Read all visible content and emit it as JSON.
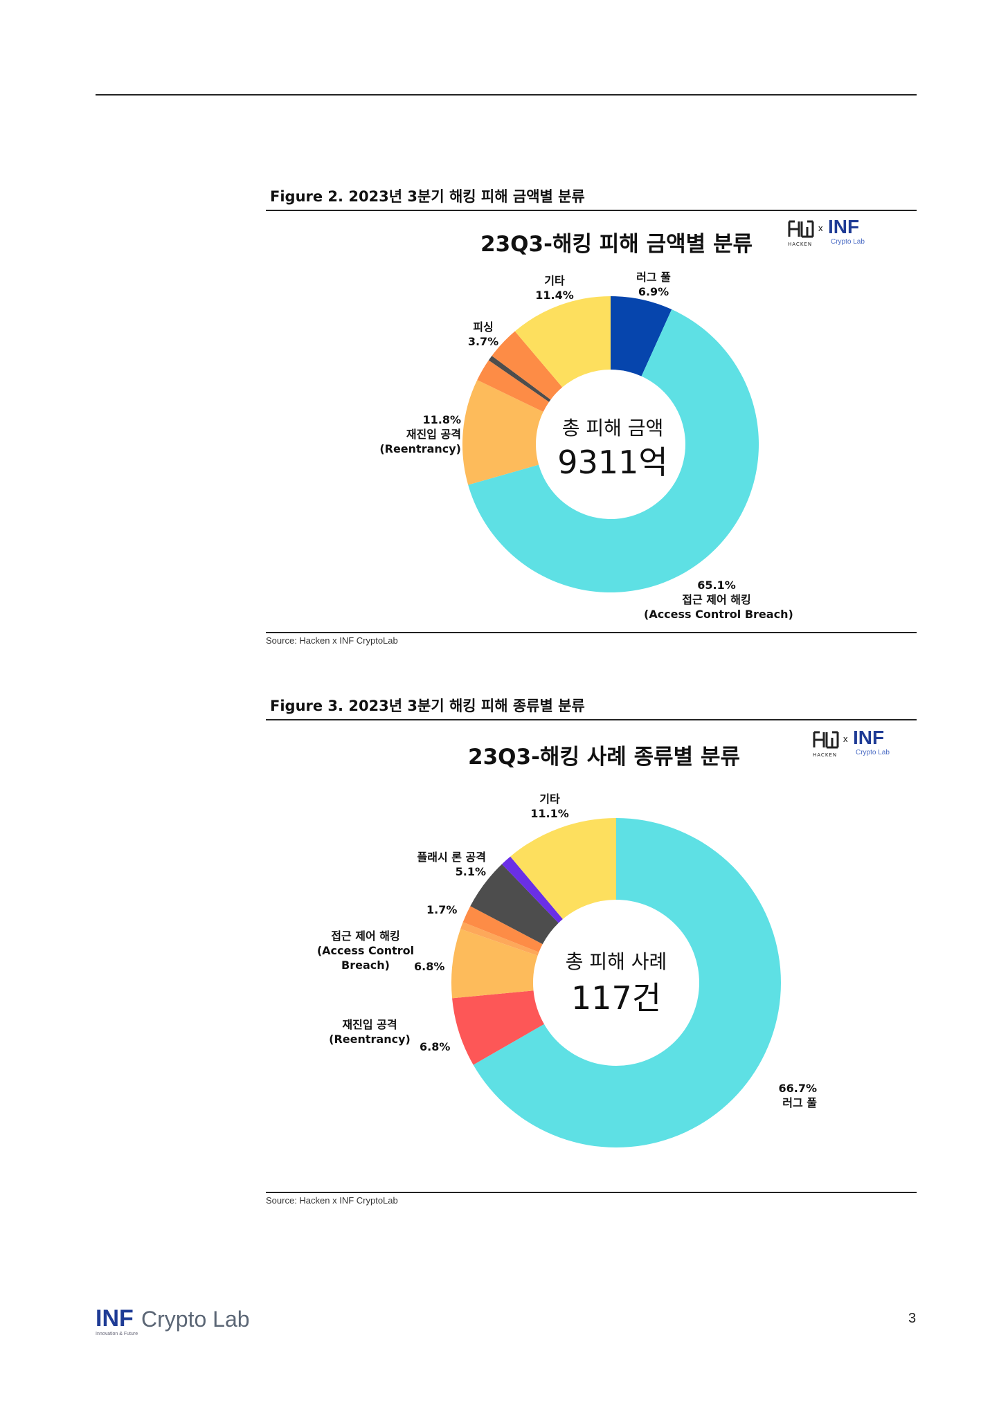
{
  "figure2": {
    "caption": "Figure 2. 2023년 3분기 해킹 피해 금액별 분류",
    "chart_title": "23Q3-해킹 피해 금액별 분류",
    "center_label": "총 피해 금액",
    "center_value": "9311억",
    "source": "Source: Hacken x INF CryptoLab",
    "chart_data": {
      "type": "pie",
      "title": "23Q3-해킹 피해 금액별 분류",
      "slices": [
        {
          "label": "러그 풀",
          "value": 6.9,
          "color": "#0645ad"
        },
        {
          "label": "접근 제어 해킹 (Access Control Breach)",
          "value": 65.1,
          "color": "#5ee0e4"
        },
        {
          "label": "재진입 공격 (Reentrancy)",
          "value": 11.8,
          "color": "#fdbb5b"
        },
        {
          "label": "",
          "value": 2.5,
          "color": "#fd8c46"
        },
        {
          "label": "",
          "value": 0.6,
          "color": "#4d4d4d"
        },
        {
          "label": "피싱",
          "value": 3.7,
          "color": "#fd8c46"
        },
        {
          "label": "기타",
          "value": 11.4,
          "color": "#fddf5e"
        }
      ]
    },
    "labels": {
      "rug_pull": "러그 풀",
      "rug_pull_pct": "6.9%",
      "access_pct": "65.1%",
      "access_ko": "접근 제어 해킹",
      "access_en": "(Access Control Breach)",
      "reentrancy_pct": "11.8%",
      "reentrancy_ko": "재진입 공격",
      "reentrancy_en": "(Reentrancy)",
      "phishing": "피싱",
      "phishing_pct": "3.7%",
      "etc": "기타",
      "etc_pct": "11.4%"
    }
  },
  "figure3": {
    "caption": "Figure 3. 2023년 3분기 해킹 피해 종류별 분류",
    "chart_title": "23Q3-해킹 사례 종류별 분류",
    "center_label": "총 피해 사례",
    "center_value": "117건",
    "source": "Source: Hacken x INF CryptoLab",
    "chart_data": {
      "type": "pie",
      "title": "23Q3-해킹 사례 종류별 분류",
      "slices": [
        {
          "label": "러그 풀",
          "value": 66.7,
          "color": "#5ee0e4"
        },
        {
          "label": "재진입 공격 (Reentrancy)",
          "value": 6.8,
          "color": "#fd5757"
        },
        {
          "label": "접근 제어 해킹 (Access Control Breach)",
          "value": 6.8,
          "color": "#fdbb5b"
        },
        {
          "label": "",
          "value": 0.7,
          "color": "#fda85a"
        },
        {
          "label": "",
          "value": 1.7,
          "color": "#fd8c46"
        },
        {
          "label": "플래시 론 공격",
          "value": 5.1,
          "color": "#4d4d4d"
        },
        {
          "label": "",
          "value": 1.1,
          "color": "#6a2fe6"
        },
        {
          "label": "기타",
          "value": 11.1,
          "color": "#fddf5e"
        }
      ]
    },
    "labels": {
      "etc": "기타",
      "etc_pct": "11.1%",
      "flash": "플래시 론 공격",
      "flash_pct": "5.1%",
      "small_pct": "1.7%",
      "access_ko": "접근 제어 해킹",
      "access_en1": "(Access Control",
      "access_en2": "Breach)",
      "access_pct": "6.8%",
      "reentrancy_ko": "재진입 공격",
      "reentrancy_en": "(Reentrancy)",
      "reentrancy_pct": "6.8%",
      "rug_pull_pct": "66.7%",
      "rug_pull": "러그 풀"
    }
  },
  "logo": {
    "x": "x",
    "inf": "INF",
    "cryptolab": "Crypto Lab",
    "hacken": "HACKEN"
  },
  "footer": {
    "inf": "INF",
    "cryptolab": "Crypto Lab",
    "tagline": "Innovation & Future",
    "page_number": "3"
  }
}
